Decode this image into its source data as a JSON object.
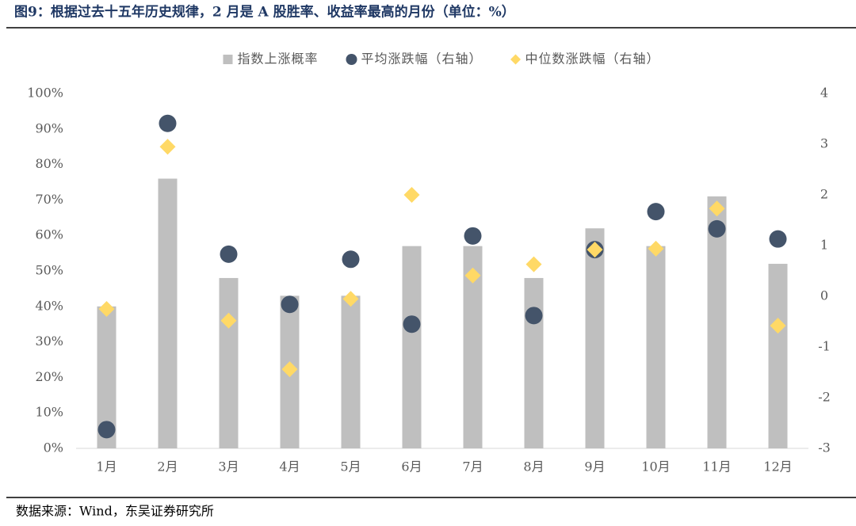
{
  "chart_data": {
    "type": "combo",
    "title": "图9：根据过去十五年历史规律，2 月是 A 股胜率、收益率最高的月份（单位：%）",
    "source": "数据来源：Wind，东吴证券研究所",
    "categories": [
      "1月",
      "2月",
      "3月",
      "4月",
      "5月",
      "6月",
      "7月",
      "8月",
      "9月",
      "10月",
      "11月",
      "12月"
    ],
    "series": [
      {
        "name": "指数上涨概率",
        "type": "bar",
        "color": "#bfbfbf",
        "values": [
          40,
          76,
          48,
          43,
          43,
          57,
          57,
          48,
          62,
          57,
          71,
          52
        ]
      },
      {
        "name": "平均涨跌幅（右轴）",
        "type": "scatter",
        "marker": "circle",
        "axis": "y2",
        "color": "#44546a",
        "values": [
          -2.63,
          3.41,
          0.83,
          -0.16,
          0.73,
          -0.55,
          1.19,
          -0.38,
          0.92,
          1.67,
          1.33,
          1.13
        ]
      },
      {
        "name": "中位数涨跌幅（右轴）",
        "type": "scatter",
        "marker": "diamond",
        "axis": "y2",
        "color": "#ffd966",
        "values": [
          -0.25,
          2.95,
          -0.48,
          -1.44,
          -0.05,
          2.0,
          0.41,
          0.63,
          0.92,
          0.94,
          1.73,
          -0.58
        ]
      }
    ],
    "ylim": [
      0,
      100
    ],
    "yticks": [
      {
        "value": 0,
        "label": "0%"
      },
      {
        "value": 10,
        "label": "10%"
      },
      {
        "value": 20,
        "label": "20%"
      },
      {
        "value": 30,
        "label": "30%"
      },
      {
        "value": 40,
        "label": "40%"
      },
      {
        "value": 50,
        "label": "50%"
      },
      {
        "value": 60,
        "label": "60%"
      },
      {
        "value": 70,
        "label": "70%"
      },
      {
        "value": 80,
        "label": "80%"
      },
      {
        "value": 90,
        "label": "90%"
      },
      {
        "value": 100,
        "label": "100%"
      }
    ],
    "y2lim": [
      -3,
      4
    ],
    "y2ticks": [
      -3,
      -2,
      -1,
      0,
      1,
      2,
      3,
      4
    ],
    "legend": "top",
    "grid": false
  }
}
